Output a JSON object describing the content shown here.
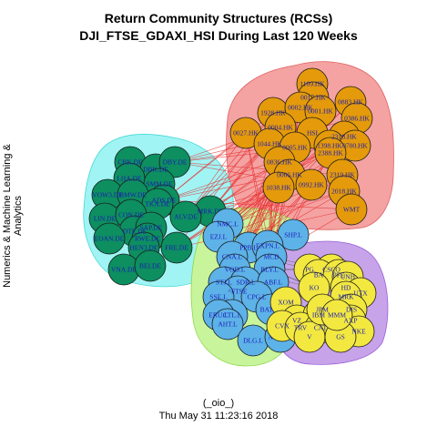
{
  "title_line1": "Return Community Structures (RCSs)",
  "title_line2": "DJI_FTSE_GDAXI_HSI During Last 120 Weeks",
  "side_label": "Numerics & Machine Learning & Analytics",
  "footer_line1": "(_oio_)",
  "footer_line2": "Thu May 31 11:23:16 2018",
  "colors": {
    "hk_hull": "#f4a2a2",
    "hk_node": "#e49a0a",
    "hk_edge": "#e83030",
    "de_hull": "#a0f4f4",
    "de_node": "#0d8f60",
    "uk_hull": "#c8f49c",
    "uk_node": "#5db2e8",
    "us_hull": "#c7a3ea",
    "us_node": "#f2e840",
    "node_label": "#1b1bb4"
  },
  "communities": [
    {
      "name": "hk",
      "nodes": [
        {
          "label": "1109.HK"
        },
        {
          "label": "0017.HK"
        },
        {
          "label": "0883.HK"
        },
        {
          "label": "1928.HK"
        },
        {
          "label": "0002.HK"
        },
        {
          "label": "0001.HK"
        },
        {
          "label": "0386.HK"
        },
        {
          "label": "0027.HK"
        },
        {
          "label": "0004.HK"
        },
        {
          "label": "HSI"
        },
        {
          "label": "2318.HK"
        },
        {
          "label": "1044.HK"
        },
        {
          "label": "0005.HK"
        },
        {
          "label": "1398.HK"
        },
        {
          "label": "0700.HK"
        },
        {
          "label": "2388.HK"
        },
        {
          "label": "0836.HK"
        },
        {
          "label": "2319.HK"
        },
        {
          "label": "0006.HK"
        },
        {
          "label": "1038.HK"
        },
        {
          "label": "0992.HK"
        },
        {
          "label": "2018.HK"
        },
        {
          "label": "WMT"
        }
      ]
    },
    {
      "name": "de",
      "nodes": [
        {
          "label": "CBK.DE"
        },
        {
          "label": "DBK.DE"
        },
        {
          "label": "DBY.DE"
        },
        {
          "label": "LHA.DE"
        },
        {
          "label": "SMM.DE"
        },
        {
          "label": "VOW3.DE"
        },
        {
          "label": "BMW.DE"
        },
        {
          "label": "ADS.DE"
        },
        {
          "label": "TKA.DE"
        },
        {
          "label": "LIN.DE"
        },
        {
          "label": "CON.DE"
        },
        {
          "label": "MRK.DE"
        },
        {
          "label": "DTE.DE"
        },
        {
          "label": "SAP.DE"
        },
        {
          "label": "ALV.DE"
        },
        {
          "label": "EOAN.DE"
        },
        {
          "label": "RWE.DE"
        },
        {
          "label": "HEN3.DE"
        },
        {
          "label": "FRE.DE"
        },
        {
          "label": "VNA.DE"
        },
        {
          "label": "BEI.DE"
        }
      ]
    },
    {
      "name": "uk",
      "nodes": [
        {
          "label": "NMC.L"
        },
        {
          "label": "SHP.L"
        },
        {
          "label": "EZJ.L"
        },
        {
          "label": "PPB.L"
        },
        {
          "label": "EXPN.L"
        },
        {
          "label": "CNA.L"
        },
        {
          "label": "MCD"
        },
        {
          "label": "VOD.L"
        },
        {
          "label": "BLY.L"
        },
        {
          "label": "STJ.L"
        },
        {
          "label": "SDR.L"
        },
        {
          "label": "ABF.L"
        },
        {
          "label": "^FTSE"
        },
        {
          "label": "SSE.L"
        },
        {
          "label": "CPG.L"
        },
        {
          "label": "BATS.L"
        },
        {
          "label": "CTL.L"
        },
        {
          "label": "ERU.L"
        },
        {
          "label": "AHT.L"
        },
        {
          "label": "DLG.L"
        },
        {
          "label": "ANTO.L"
        }
      ]
    },
    {
      "name": "us",
      "nodes": [
        {
          "label": "PG"
        },
        {
          "label": "CSCO"
        },
        {
          "label": "BA"
        },
        {
          "label": "PFE"
        },
        {
          "label": "KO"
        },
        {
          "label": "UNH"
        },
        {
          "label": "HD"
        },
        {
          "label": "UTX"
        },
        {
          "label": "MRK"
        },
        {
          "label": "XOM"
        },
        {
          "label": "DIS"
        },
        {
          "label": "VZ"
        },
        {
          "label": "IBM"
        },
        {
          "label": "AXP"
        },
        {
          "label": "CVX"
        },
        {
          "label": "TRV"
        },
        {
          "label": "CAT"
        },
        {
          "label": "NKE"
        },
        {
          "label": "V"
        },
        {
          "label": "GS"
        },
        {
          "label": "JPM"
        },
        {
          "label": "MMM"
        }
      ]
    }
  ]
}
